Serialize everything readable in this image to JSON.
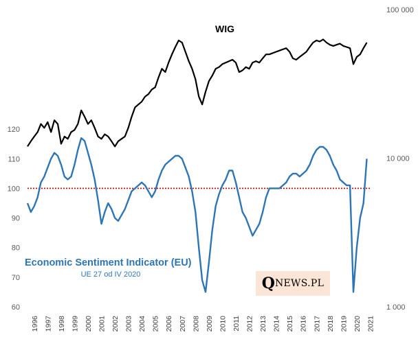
{
  "brand": {
    "initial": "Q",
    "rest": "NEWS.PL"
  },
  "chart_data": {
    "type": "line",
    "series": [
      {
        "name": "WIG",
        "axis": "right",
        "color": "#000000",
        "x": [
          1996.0,
          1996.25,
          1996.5,
          1996.75,
          1997.0,
          1997.25,
          1997.5,
          1997.75,
          1998.0,
          1998.25,
          1998.5,
          1998.75,
          1999.0,
          1999.25,
          1999.5,
          1999.75,
          2000.0,
          2000.25,
          2000.5,
          2000.75,
          2001.0,
          2001.25,
          2001.5,
          2001.75,
          2002.0,
          2002.25,
          2002.5,
          2002.75,
          2003.0,
          2003.25,
          2003.5,
          2003.75,
          2004.0,
          2004.25,
          2004.5,
          2004.75,
          2005.0,
          2005.25,
          2005.5,
          2005.75,
          2006.0,
          2006.25,
          2006.5,
          2006.75,
          2007.0,
          2007.25,
          2007.5,
          2007.75,
          2008.0,
          2008.25,
          2008.5,
          2008.75,
          2009.0,
          2009.25,
          2009.5,
          2009.75,
          2010.0,
          2010.25,
          2010.5,
          2010.75,
          2011.0,
          2011.25,
          2011.5,
          2011.75,
          2012.0,
          2012.25,
          2012.5,
          2012.75,
          2013.0,
          2013.25,
          2013.5,
          2013.75,
          2014.0,
          2014.25,
          2014.5,
          2014.75,
          2015.0,
          2015.25,
          2015.5,
          2015.75,
          2016.0,
          2016.25,
          2016.5,
          2016.75,
          2017.0,
          2017.25,
          2017.5,
          2017.75,
          2018.0,
          2018.25,
          2018.5,
          2018.75,
          2019.0,
          2019.25,
          2019.5,
          2019.75,
          2020.0,
          2020.25,
          2020.5,
          2020.75,
          2021.0,
          2021.25
        ],
        "values": [
          12000,
          13000,
          14000,
          15000,
          17000,
          16000,
          17500,
          15000,
          18000,
          17000,
          12500,
          14000,
          13500,
          15000,
          15500,
          17000,
          21000,
          19000,
          17000,
          18000,
          16000,
          14000,
          13500,
          14500,
          14000,
          13000,
          12000,
          13000,
          13500,
          14000,
          16000,
          19000,
          22000,
          23000,
          24000,
          26000,
          27000,
          29000,
          30000,
          35000,
          40000,
          38000,
          44000,
          50000,
          56000,
          62000,
          60000,
          52000,
          45000,
          40000,
          34000,
          26000,
          23000,
          28000,
          33000,
          36000,
          40000,
          41000,
          43000,
          44000,
          45000,
          46000,
          44000,
          38000,
          39000,
          41000,
          40000,
          44000,
          45000,
          44000,
          47000,
          50000,
          50000,
          51000,
          52000,
          53000,
          54000,
          55000,
          52000,
          47000,
          46000,
          48000,
          50000,
          52000,
          56000,
          60000,
          62000,
          61000,
          63000,
          60000,
          58000,
          57000,
          58000,
          59000,
          57000,
          56000,
          55000,
          43000,
          48000,
          50000,
          55000,
          60000
        ]
      },
      {
        "name": "Economic Sentiment Indicator (EU)",
        "axis": "left",
        "color": "#2e75b6",
        "x": [
          1996.0,
          1996.25,
          1996.5,
          1996.75,
          1997.0,
          1997.25,
          1997.5,
          1997.75,
          1998.0,
          1998.25,
          1998.5,
          1998.75,
          1999.0,
          1999.25,
          1999.5,
          1999.75,
          2000.0,
          2000.25,
          2000.5,
          2000.75,
          2001.0,
          2001.25,
          2001.5,
          2001.75,
          2002.0,
          2002.25,
          2002.5,
          2002.75,
          2003.0,
          2003.25,
          2003.5,
          2003.75,
          2004.0,
          2004.25,
          2004.5,
          2004.75,
          2005.0,
          2005.25,
          2005.5,
          2005.75,
          2006.0,
          2006.25,
          2006.5,
          2006.75,
          2007.0,
          2007.25,
          2007.5,
          2007.75,
          2008.0,
          2008.25,
          2008.5,
          2008.75,
          2009.0,
          2009.25,
          2009.5,
          2009.75,
          2010.0,
          2010.25,
          2010.5,
          2010.75,
          2011.0,
          2011.25,
          2011.5,
          2011.75,
          2012.0,
          2012.25,
          2012.5,
          2012.75,
          2013.0,
          2013.25,
          2013.5,
          2013.75,
          2014.0,
          2014.25,
          2014.5,
          2014.75,
          2015.0,
          2015.25,
          2015.5,
          2015.75,
          2016.0,
          2016.25,
          2016.5,
          2016.75,
          2017.0,
          2017.25,
          2017.5,
          2017.75,
          2018.0,
          2018.25,
          2018.5,
          2018.75,
          2019.0,
          2019.25,
          2019.5,
          2019.75,
          2020.0,
          2020.25,
          2020.5,
          2020.75,
          2021.0,
          2021.25
        ],
        "values": [
          95,
          92,
          94,
          97,
          102,
          104,
          107,
          110,
          112,
          111,
          108,
          104,
          103,
          104,
          108,
          113,
          117,
          116,
          112,
          108,
          103,
          96,
          88,
          92,
          95,
          93,
          90,
          89,
          91,
          93,
          96,
          99,
          100,
          101,
          102,
          101,
          99,
          97,
          99,
          103,
          106,
          108,
          109,
          110,
          111,
          111,
          110,
          107,
          104,
          99,
          92,
          80,
          69,
          65,
          75,
          86,
          94,
          98,
          101,
          103,
          106,
          106,
          102,
          97,
          92,
          90,
          87,
          84,
          86,
          88,
          92,
          97,
          100,
          100,
          100,
          100,
          101,
          102,
          104,
          105,
          105,
          104,
          105,
          106,
          108,
          111,
          113,
          114,
          114,
          113,
          111,
          108,
          106,
          103,
          102,
          101,
          101,
          65,
          80,
          90,
          95,
          110
        ]
      }
    ],
    "reference_line": {
      "value": 100,
      "axis": "left",
      "color": "#c00000",
      "style": "dotted"
    },
    "left_axis": {
      "min": 60,
      "max": 130,
      "ticks": [
        60,
        70,
        80,
        90,
        100,
        110,
        120
      ]
    },
    "right_axis": {
      "scale": "log",
      "min": 1000,
      "max": 100000,
      "ticks": [
        1000,
        10000,
        100000
      ],
      "tick_labels": [
        "1 000",
        "10 000",
        "100 000"
      ]
    },
    "x_axis": {
      "min": 1996,
      "max": 2021.58,
      "ticks": [
        "1996",
        "1997",
        "1998",
        "1999",
        "2000",
        "2001",
        "2002",
        "2003",
        "2004",
        "2005",
        "2006",
        "2007",
        "2008",
        "2009",
        "2010",
        "2011",
        "2012",
        "2013",
        "2014",
        "2015",
        "2016",
        "2017",
        "2018",
        "2019",
        "2020",
        "2021"
      ]
    },
    "labels": {
      "wig_title": "WIG",
      "esi_title": "Economic Sentiment Indicator (EU)",
      "esi_subtitle": "UE 27 od IV 2020"
    },
    "grid": false,
    "legend": "none"
  }
}
